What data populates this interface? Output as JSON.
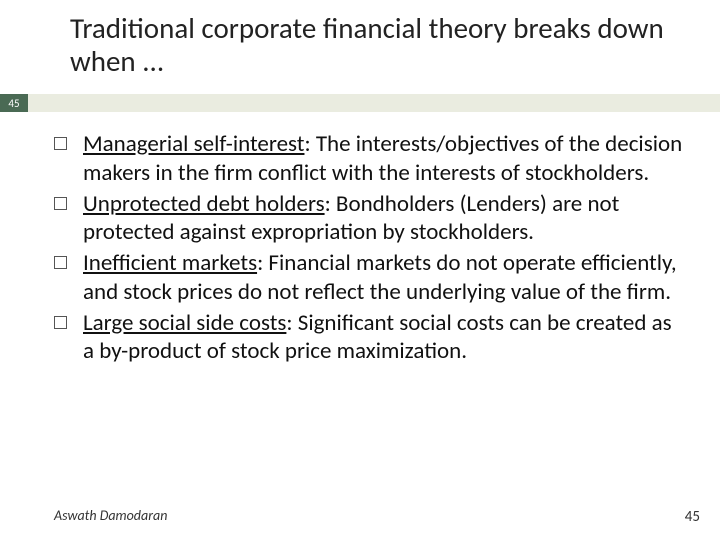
{
  "slide": {
    "title": "Traditional corporate financial theory breaks down when ...",
    "title_fontsize": 29,
    "title_color": "#222222",
    "badge_number": "45",
    "badge_bg_color": "#4a6a54",
    "badge_text_color": "#ffffff",
    "bar_color": "#eaece0",
    "background_color": "#ffffff",
    "body_fontsize": 23,
    "body_color": "#111111",
    "bullets": [
      {
        "term": "Managerial self-interest",
        "rest": ": The interests/objectives of the decision makers in the firm conflict with the interests of stockholders."
      },
      {
        "term": "Unprotected debt holders",
        "rest": ": Bondholders (Lenders) are not protected against expropriation by stockholders."
      },
      {
        "term": "Inefficient markets",
        "rest": ": Financial markets do not operate efficiently, and stock prices do not reflect the underlying value of the firm."
      },
      {
        "term": "Large social side costs",
        "rest": ": Significant social costs can be created as a by-product of stock price maximization."
      }
    ],
    "footer_author": "Aswath Damodaran",
    "footer_page": "45",
    "footer_fontsize": 14
  }
}
